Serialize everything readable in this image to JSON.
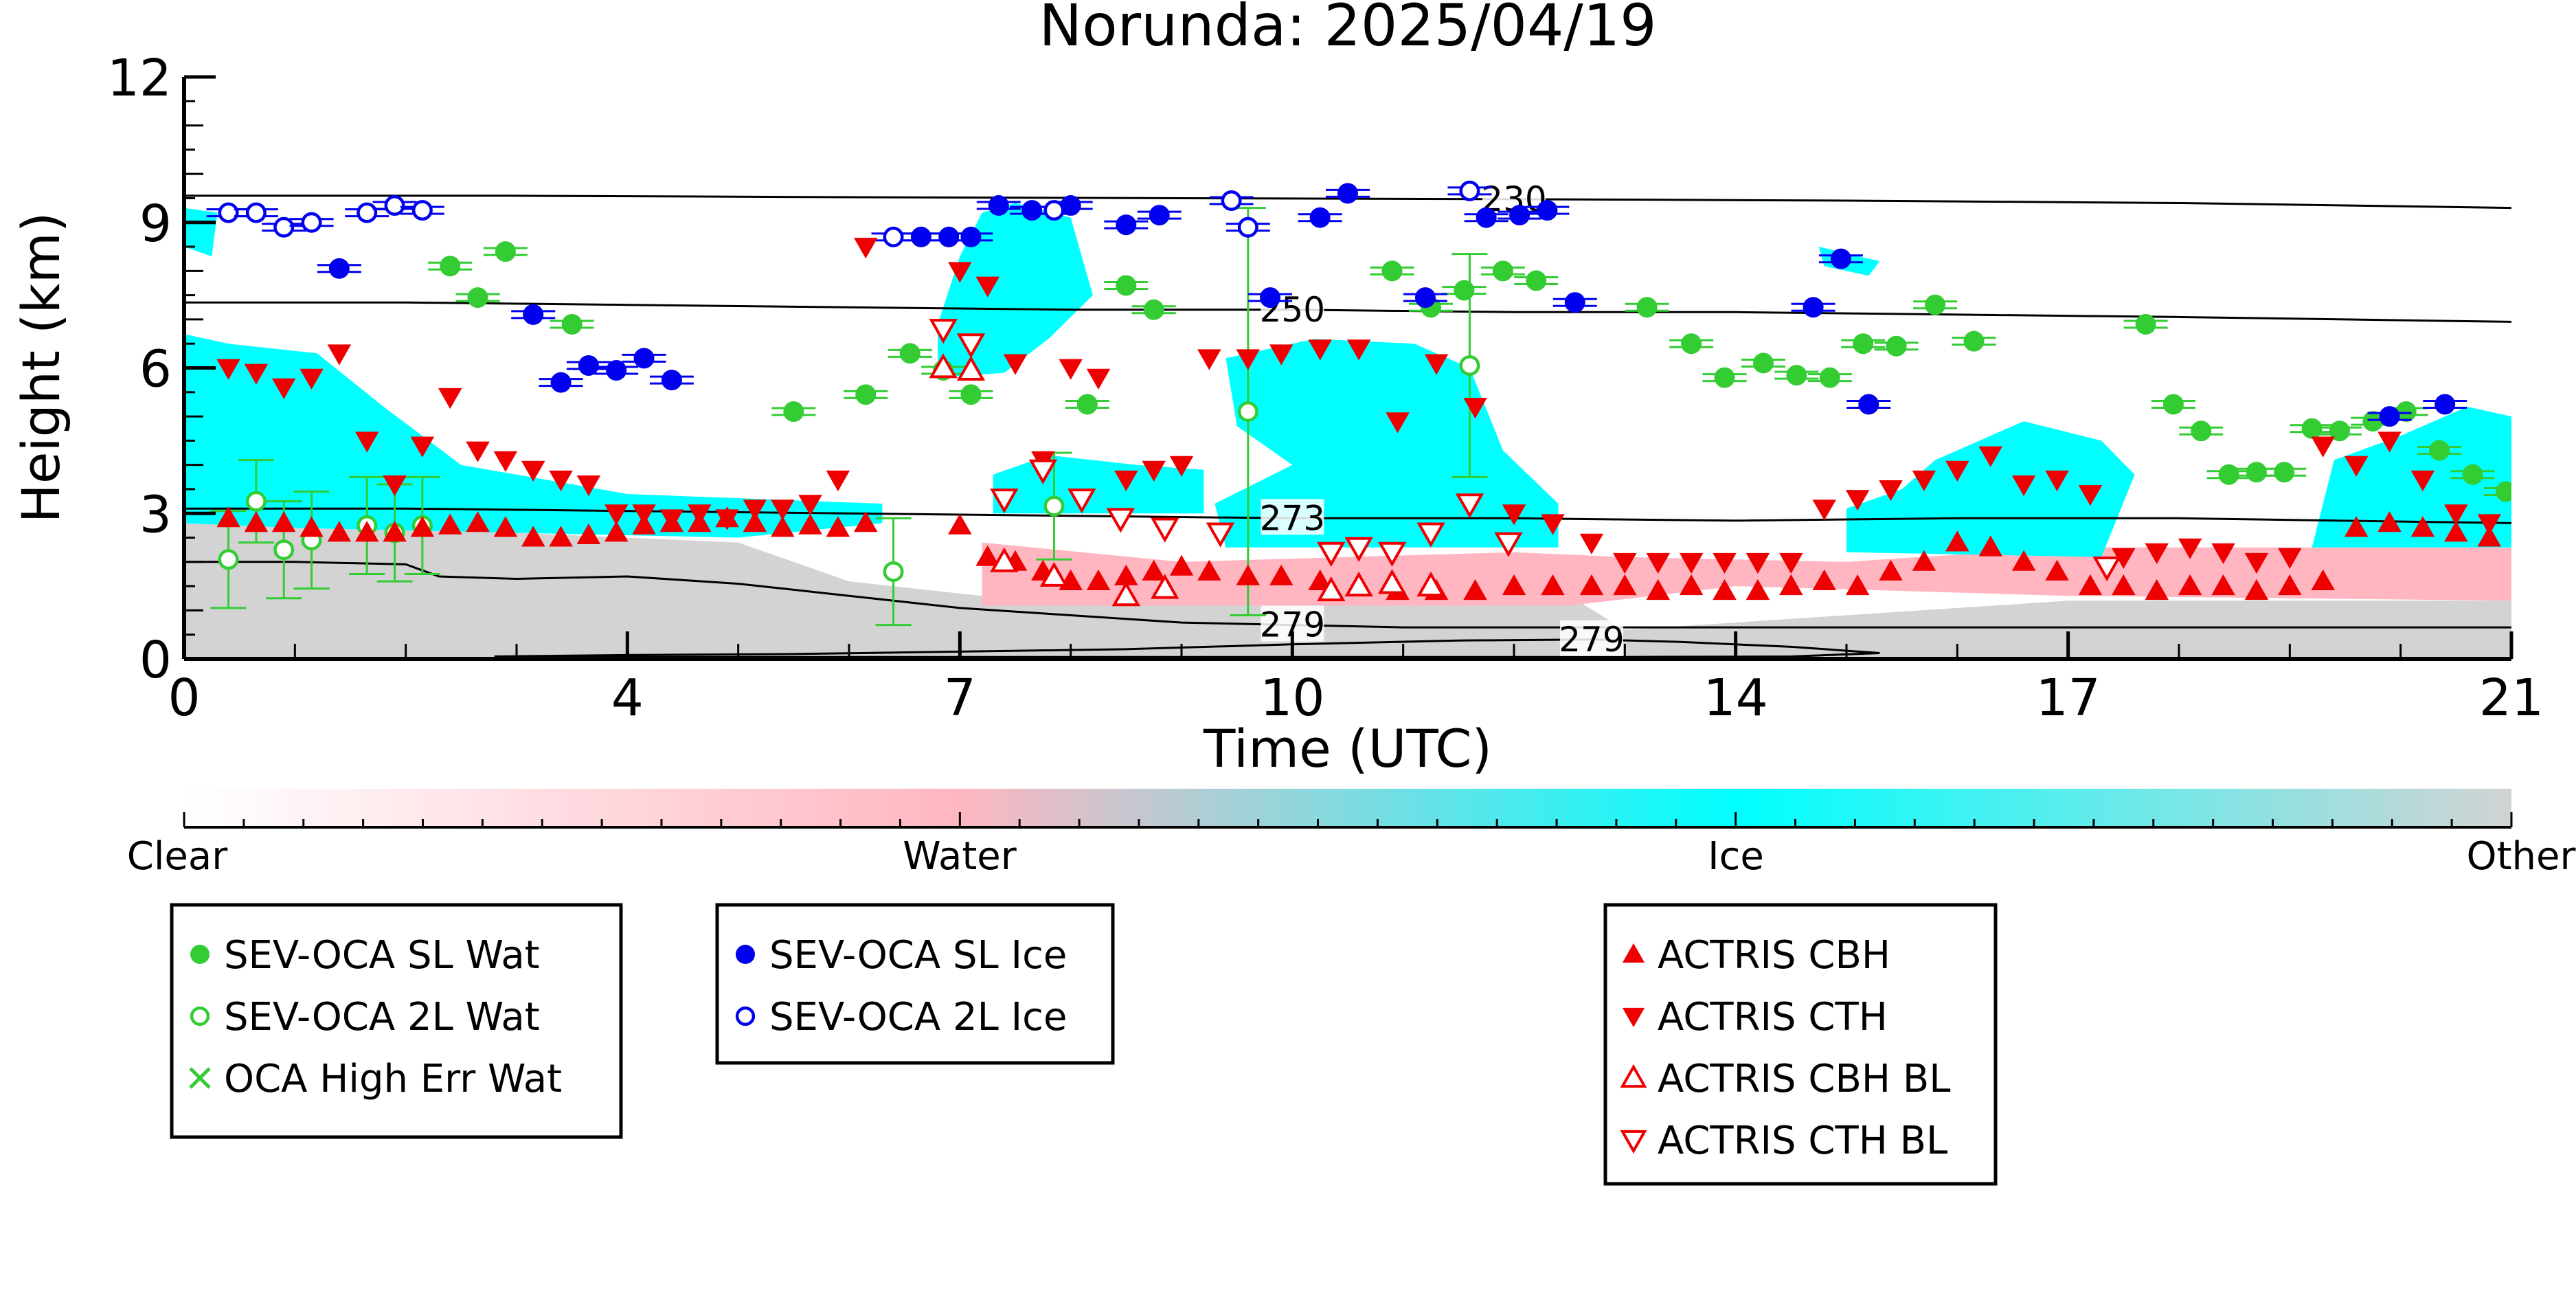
{
  "chart_data": {
    "type": "scatter",
    "title": "Norunda: 2025/04/19",
    "xlabel": "Time (UTC)",
    "ylabel": "Height (km)",
    "xlim": [
      0,
      21
    ],
    "ylim": [
      0,
      12
    ],
    "xticks": [
      0,
      4,
      7,
      10,
      14,
      17,
      21
    ],
    "xtick_labels": [
      "0",
      "4",
      "7",
      "10",
      "14",
      "17",
      "21"
    ],
    "yticks": [
      0,
      3,
      6,
      9,
      12
    ],
    "ytick_labels": [
      "0",
      "3",
      "6",
      "9",
      "12"
    ],
    "grid": false,
    "background": "cloud-phase curtain (clear / water / ice / other)",
    "colorbar": {
      "labels": [
        "Clear",
        "Water",
        "Ice",
        "Other"
      ],
      "colors": [
        "#ffffff",
        "#ffb6c1",
        "#00ffff",
        "#d3d3d3"
      ]
    },
    "contours": [
      {
        "label": "230",
        "x": [
          0,
          3,
          6,
          9,
          12,
          15,
          18,
          21
        ],
        "y": [
          9.55,
          9.55,
          9.52,
          9.5,
          9.48,
          9.45,
          9.4,
          9.3
        ]
      },
      {
        "label": "250",
        "x": [
          0,
          2,
          4,
          6,
          8,
          10,
          12,
          14,
          16,
          18,
          21
        ],
        "y": [
          7.35,
          7.35,
          7.3,
          7.25,
          7.2,
          7.2,
          7.15,
          7.15,
          7.1,
          7.05,
          6.95
        ]
      },
      {
        "label": "273",
        "x": [
          0,
          2,
          4,
          6,
          8,
          10,
          12,
          14,
          16,
          18,
          21
        ],
        "y": [
          3.1,
          3.1,
          3.05,
          3.0,
          2.95,
          2.9,
          2.9,
          2.85,
          2.9,
          2.9,
          2.8
        ]
      },
      {
        "label": "279",
        "x": [
          0,
          1,
          2,
          2.3,
          3,
          4,
          5,
          6,
          7,
          8,
          9,
          10,
          11,
          12,
          13,
          14,
          15,
          16,
          17,
          18,
          19,
          20,
          21
        ],
        "y": [
          2.0,
          2.0,
          1.95,
          1.7,
          1.65,
          1.7,
          1.55,
          1.3,
          1.05,
          0.9,
          0.75,
          0.7,
          0.65,
          0.65,
          0.65,
          0.65,
          0.65,
          0.65,
          0.65,
          0.65,
          0.65,
          0.65,
          0.65
        ]
      },
      {
        "label": "279",
        "x": [
          2.8,
          4,
          5.5,
          7,
          8.5,
          10,
          11.5,
          12.7,
          13.5,
          14.5,
          15.3,
          14.5,
          13,
          11.5,
          10,
          8.5,
          7,
          5.5,
          4,
          2.8
        ],
        "y": [
          0.05,
          0.08,
          0.1,
          0.15,
          0.2,
          0.3,
          0.38,
          0.4,
          0.35,
          0.25,
          0.12,
          0.05,
          0.04,
          0.04,
          0.04,
          0.04,
          0.04,
          0.04,
          0.04,
          0.05
        ]
      }
    ],
    "series": [
      {
        "name": "SEV-OCA SL Wat",
        "color": "#33cc33",
        "marker": "filled-circle",
        "x": [
          2.4,
          2.65,
          2.9,
          3.5,
          5.5,
          6.15,
          6.55,
          6.85,
          7.1,
          8.15,
          8.5,
          8.75,
          10.9,
          11.25,
          11.55,
          11.9,
          12.2,
          13.2,
          13.6,
          13.9,
          14.25,
          14.55,
          14.85,
          15.15,
          15.45,
          15.8,
          16.15,
          17.7,
          17.95,
          18.2,
          18.45,
          18.7,
          18.95,
          19.2,
          19.45,
          19.75,
          20.05,
          20.35,
          20.65,
          20.95
        ],
        "y": [
          8.1,
          7.45,
          8.4,
          6.9,
          5.1,
          5.45,
          6.3,
          5.95,
          5.45,
          5.25,
          7.7,
          7.2,
          8.0,
          7.25,
          7.6,
          8.0,
          7.8,
          7.25,
          6.5,
          5.8,
          6.1,
          5.85,
          5.8,
          6.5,
          6.45,
          7.3,
          6.55,
          6.9,
          5.25,
          4.7,
          3.8,
          3.85,
          3.85,
          4.75,
          4.7,
          4.9,
          5.1,
          4.3,
          3.8,
          3.45
        ]
      },
      {
        "name": "SEV-OCA 2L Wat",
        "color": "#33cc33",
        "marker": "open-circle",
        "x": [
          0.4,
          0.65,
          0.9,
          1.15,
          1.65,
          1.9,
          2.15,
          6.4,
          7.85,
          9.6,
          11.6
        ],
        "y": [
          2.05,
          3.25,
          2.25,
          2.45,
          2.75,
          2.6,
          2.75,
          1.8,
          3.15,
          5.1,
          6.05
        ],
        "err": [
          1.0,
          0.85,
          1.0,
          1.0,
          1.0,
          1.0,
          1.0,
          1.1,
          1.1,
          4.2,
          2.3
        ]
      },
      {
        "name": "OCA High Err Wat",
        "color": "#33cc33",
        "marker": "x",
        "x": [],
        "y": []
      },
      {
        "name": "SEV-OCA SL Ice",
        "color": "#0000ee",
        "marker": "filled-circle",
        "x": [
          1.4,
          3.15,
          3.4,
          3.65,
          3.9,
          4.15,
          4.4,
          6.65,
          6.9,
          7.1,
          7.35,
          7.65,
          8.0,
          8.5,
          8.8,
          9.8,
          10.25,
          10.5,
          11.2,
          11.75,
          12.05,
          12.3,
          12.55,
          14.7,
          14.95,
          15.2,
          19.9,
          20.4
        ],
        "y": [
          8.05,
          7.1,
          5.7,
          6.05,
          5.95,
          6.2,
          5.75,
          8.7,
          8.7,
          8.7,
          9.35,
          9.25,
          9.35,
          8.95,
          9.15,
          7.45,
          9.1,
          9.6,
          7.45,
          9.1,
          9.15,
          9.25,
          7.35,
          7.25,
          8.25,
          5.25,
          5.0,
          5.25
        ]
      },
      {
        "name": "SEV-OCA 2L Ice",
        "color": "#0000ee",
        "marker": "open-circle",
        "x": [
          0.4,
          0.65,
          0.9,
          1.15,
          1.65,
          1.9,
          2.15,
          6.4,
          7.85,
          9.45,
          9.6,
          11.6
        ],
        "y": [
          9.2,
          9.2,
          8.9,
          9.0,
          9.2,
          9.35,
          9.25,
          8.7,
          9.25,
          9.45,
          8.9,
          9.65
        ]
      },
      {
        "name": "ACTRIS CBH",
        "color": "#ee0000",
        "marker": "triangle-up",
        "x": [
          0.4,
          0.65,
          0.9,
          1.15,
          1.4,
          1.65,
          1.9,
          2.15,
          2.4,
          2.65,
          2.9,
          3.15,
          3.4,
          3.65,
          3.9,
          4.15,
          4.4,
          4.65,
          4.9,
          5.15,
          5.4,
          5.65,
          5.9,
          6.15,
          7.0,
          7.25,
          7.5,
          7.75,
          8.0,
          8.25,
          8.5,
          8.75,
          9.0,
          9.25,
          9.6,
          9.9,
          10.25,
          10.6,
          10.95,
          11.3,
          11.65,
          12.0,
          12.35,
          12.7,
          13.0,
          13.3,
          13.6,
          13.9,
          14.2,
          14.5,
          14.8,
          15.1,
          15.4,
          15.7,
          16.0,
          16.3,
          16.6,
          16.9,
          17.2,
          17.5,
          17.8,
          18.1,
          18.4,
          18.7,
          19.0,
          19.3,
          19.6,
          19.9,
          20.2,
          20.5,
          20.8
        ],
        "y": [
          2.9,
          2.8,
          2.8,
          2.7,
          2.6,
          2.6,
          2.6,
          2.7,
          2.75,
          2.8,
          2.7,
          2.5,
          2.5,
          2.55,
          2.6,
          2.75,
          2.8,
          2.8,
          2.9,
          2.8,
          2.7,
          2.75,
          2.7,
          2.8,
          2.75,
          2.1,
          2.0,
          1.8,
          1.6,
          1.6,
          1.7,
          1.8,
          1.9,
          1.8,
          1.7,
          1.7,
          1.6,
          1.5,
          1.4,
          1.4,
          1.4,
          1.5,
          1.5,
          1.5,
          1.5,
          1.4,
          1.5,
          1.4,
          1.4,
          1.5,
          1.6,
          1.5,
          1.8,
          2.0,
          2.4,
          2.3,
          2.0,
          1.8,
          1.5,
          1.5,
          1.4,
          1.5,
          1.5,
          1.4,
          1.5,
          1.6,
          2.7,
          2.8,
          2.7,
          2.6,
          2.5
        ]
      },
      {
        "name": "ACTRIS CTH",
        "color": "#ee0000",
        "marker": "triangle-down",
        "x": [
          0.4,
          0.65,
          0.9,
          1.15,
          1.4,
          1.65,
          1.9,
          2.15,
          2.4,
          2.65,
          2.9,
          3.15,
          3.4,
          3.65,
          3.9,
          4.15,
          4.4,
          4.65,
          4.9,
          5.15,
          5.4,
          5.65,
          5.9,
          6.15,
          7.0,
          7.25,
          7.5,
          7.75,
          8.0,
          8.25,
          8.5,
          8.75,
          9.0,
          9.25,
          9.6,
          9.9,
          10.25,
          10.6,
          10.95,
          11.3,
          11.65,
          12.0,
          12.35,
          12.7,
          13.0,
          13.3,
          13.6,
          13.9,
          14.2,
          14.5,
          14.8,
          15.1,
          15.4,
          15.7,
          16.0,
          16.3,
          16.6,
          16.9,
          17.2,
          17.5,
          17.8,
          18.1,
          18.4,
          18.7,
          19.0,
          19.3,
          19.6,
          19.9,
          20.2,
          20.5,
          20.8
        ],
        "y": [
          6.0,
          5.9,
          5.6,
          5.8,
          6.3,
          4.5,
          3.6,
          4.4,
          5.4,
          4.3,
          4.1,
          3.9,
          3.7,
          3.6,
          3.0,
          3.0,
          2.9,
          3.0,
          2.9,
          3.1,
          3.1,
          3.2,
          3.7,
          8.5,
          8.0,
          7.7,
          6.1,
          4.1,
          6.0,
          5.8,
          3.7,
          3.9,
          4.0,
          6.2,
          6.2,
          6.3,
          6.4,
          6.4,
          4.9,
          6.1,
          5.2,
          3.0,
          2.8,
          2.4,
          2.0,
          2.0,
          2.0,
          2.0,
          2.0,
          2.0,
          3.1,
          3.3,
          3.5,
          3.7,
          3.9,
          4.2,
          3.6,
          3.7,
          3.4,
          2.1,
          2.2,
          2.3,
          2.2,
          2.0,
          2.1,
          4.4,
          4.0,
          4.5,
          3.7,
          3.0,
          2.8
        ]
      },
      {
        "name": "ACTRIS CBH BL",
        "color": "#ee0000",
        "marker": "open-triangle-up",
        "x": [
          6.85,
          7.1,
          7.4,
          7.85,
          8.5,
          8.85,
          10.35,
          10.6,
          10.9,
          11.25
        ],
        "y": [
          6.0,
          5.95,
          2.0,
          1.7,
          1.3,
          1.45,
          1.4,
          1.5,
          1.55,
          1.5
        ]
      },
      {
        "name": "ACTRIS CTH BL",
        "color": "#ee0000",
        "marker": "open-triangle-down",
        "x": [
          6.85,
          7.1,
          7.4,
          7.75,
          8.1,
          8.45,
          8.85,
          9.35,
          10.35,
          10.6,
          10.9,
          11.25,
          11.6,
          11.95,
          17.35
        ],
        "y": [
          6.8,
          6.5,
          3.3,
          3.9,
          3.3,
          2.9,
          2.7,
          2.6,
          2.2,
          2.3,
          2.2,
          2.6,
          3.2,
          2.4,
          1.9
        ]
      }
    ]
  },
  "legend_groups": [
    {
      "entries": [
        {
          "label": "SEV-OCA SL Wat",
          "marker": "filled-circle",
          "color": "#33cc33"
        },
        {
          "label": "SEV-OCA 2L Wat",
          "marker": "open-circle",
          "color": "#33cc33"
        },
        {
          "label": "OCA High Err Wat",
          "marker": "x",
          "color": "#33cc33"
        }
      ]
    },
    {
      "entries": [
        {
          "label": "SEV-OCA SL Ice",
          "marker": "filled-circle",
          "color": "#0000ee"
        },
        {
          "label": "SEV-OCA 2L Ice",
          "marker": "open-circle",
          "color": "#0000ee"
        }
      ]
    },
    {
      "entries": [
        {
          "label": "ACTRIS CBH",
          "marker": "triangle-up",
          "color": "#ee0000"
        },
        {
          "label": "ACTRIS CTH",
          "marker": "triangle-down",
          "color": "#ee0000"
        },
        {
          "label": "ACTRIS CBH BL",
          "marker": "open-triangle-up",
          "color": "#ee0000"
        },
        {
          "label": "ACTRIS CTH BL",
          "marker": "open-triangle-down",
          "color": "#ee0000"
        }
      ]
    }
  ]
}
